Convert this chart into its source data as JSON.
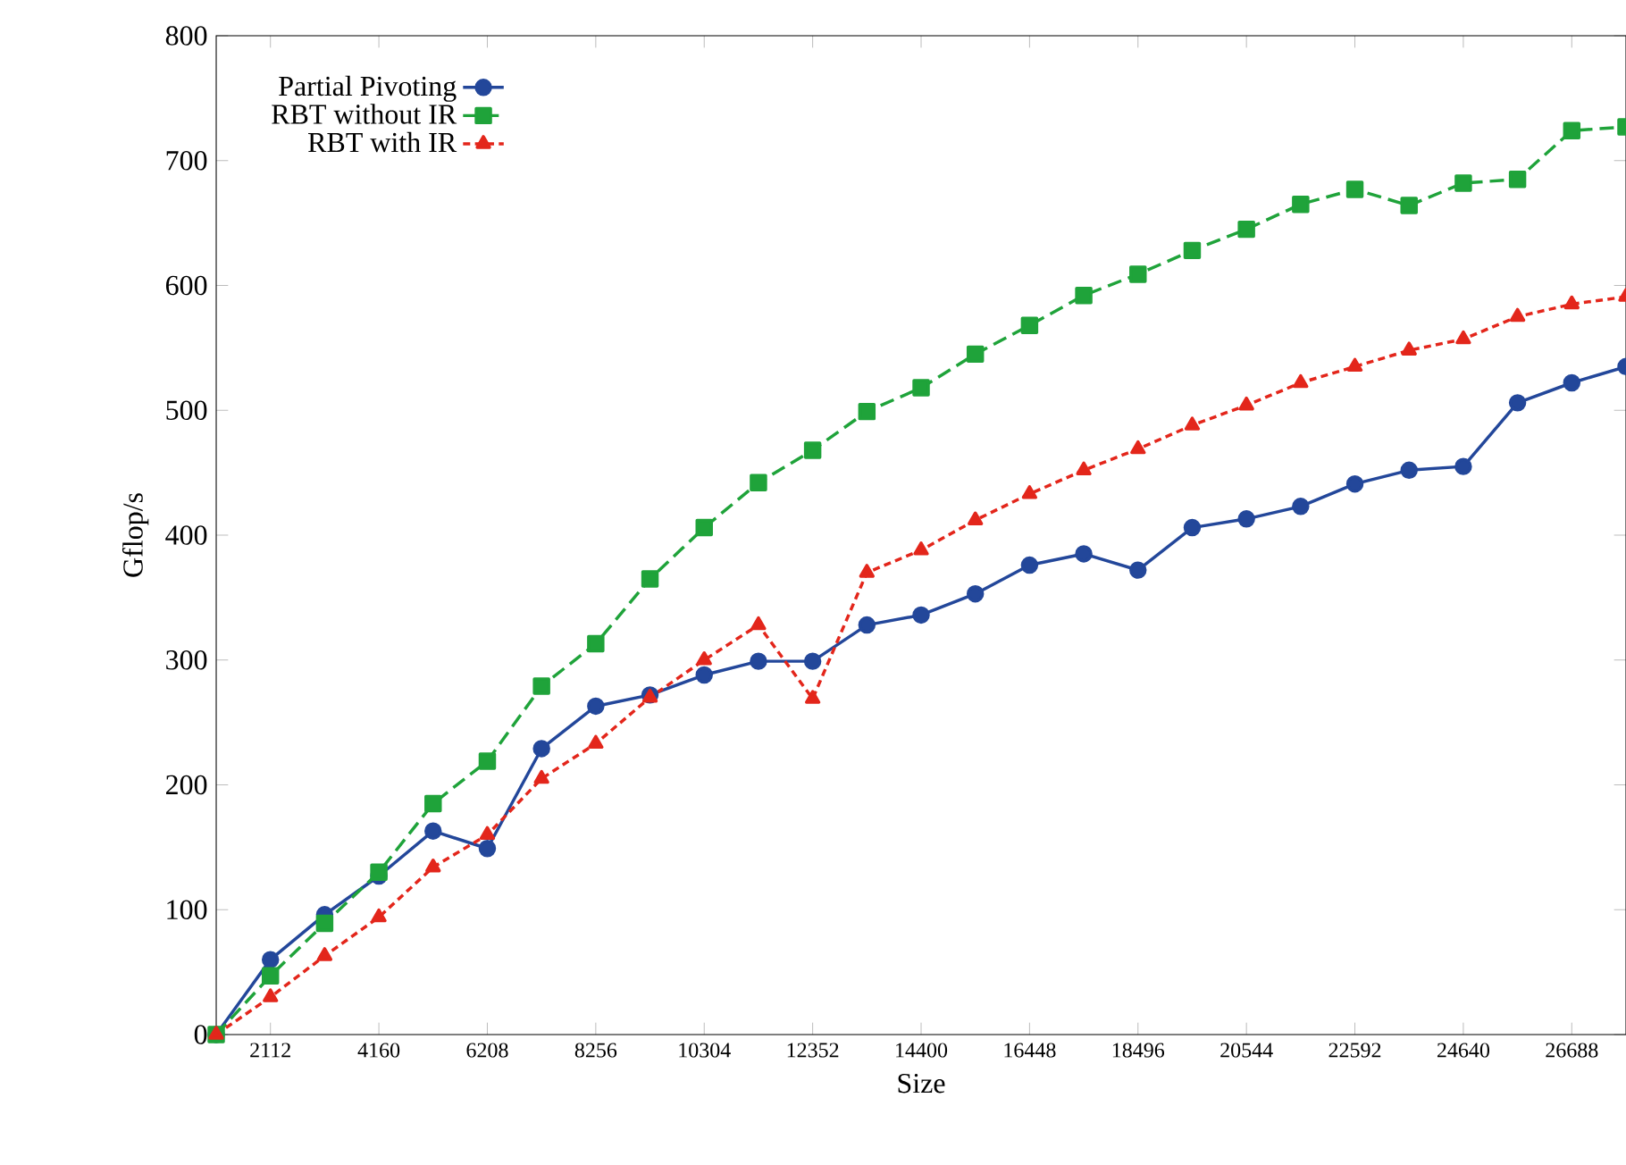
{
  "chart_data": {
    "type": "line",
    "xlabel": "Size",
    "ylabel": "Gflop/s",
    "x": [
      1088,
      2112,
      3136,
      4160,
      5184,
      6208,
      7232,
      8256,
      9280,
      10304,
      11328,
      12352,
      13376,
      14400,
      15424,
      16448,
      17472,
      18496,
      19520,
      20544,
      21568,
      22592,
      23616,
      24640,
      25664,
      26688,
      27712
    ],
    "series": [
      {
        "name": "Partial Pivoting",
        "color": "#23479a",
        "marker": "circle",
        "line_style": "solid",
        "values": [
          0,
          60,
          96,
          127,
          163,
          149,
          229,
          263,
          272,
          288,
          299,
          299,
          328,
          336,
          353,
          376,
          385,
          372,
          406,
          413,
          423,
          441,
          452,
          455,
          506,
          522,
          535
        ]
      },
      {
        "name": "RBT without IR",
        "color": "#1fa33a",
        "marker": "square",
        "line_style": "dashed",
        "values": [
          0,
          47,
          89,
          130,
          185,
          219,
          279,
          313,
          365,
          406,
          442,
          468,
          499,
          518,
          545,
          568,
          592,
          609,
          628,
          645,
          665,
          677,
          664,
          682,
          685,
          724,
          727
        ]
      },
      {
        "name": "RBT with IR",
        "color": "#e3261b",
        "marker": "triangle",
        "line_style": "dotted",
        "values": [
          0,
          30,
          63,
          94,
          134,
          160,
          205,
          233,
          270,
          300,
          328,
          269,
          370,
          388,
          412,
          433,
          452,
          469,
          488,
          504,
          522,
          535,
          548,
          557,
          575,
          585,
          591
        ]
      }
    ],
    "xlim": [
      1088,
      27712
    ],
    "ylim": [
      0,
      800
    ],
    "xticks": [
      2112,
      4160,
      6208,
      8256,
      10304,
      12352,
      14400,
      16448,
      18496,
      20544,
      22592,
      24640,
      26688
    ],
    "yticks": [
      0,
      100,
      200,
      300,
      400,
      500,
      600,
      700,
      800
    ],
    "grid": false,
    "legend": "top left"
  }
}
